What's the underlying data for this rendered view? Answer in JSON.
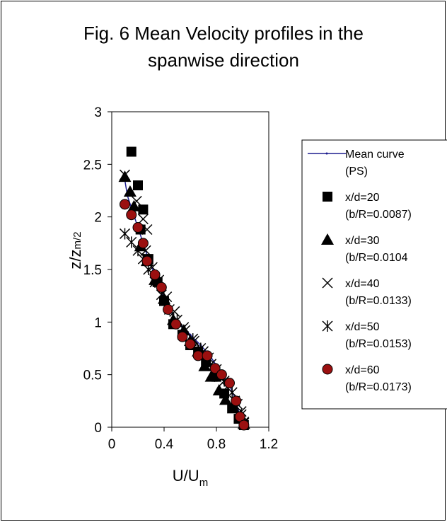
{
  "chart_data": {
    "type": "scatter",
    "title_lines": [
      "Fig. 6 Mean Velocity profiles in the",
      "spanwise direction"
    ],
    "xlabel": {
      "main": "U/U",
      "sub": "m"
    },
    "ylabel": {
      "main": "z/z",
      "sub": "m/2"
    },
    "xlim": [
      0,
      1.2
    ],
    "ylim": [
      0,
      3
    ],
    "xticks": [
      "0",
      "0.4",
      "0.8",
      "1.2"
    ],
    "xtick_values": [
      0,
      0.4,
      0.8,
      1.2
    ],
    "yticks": [
      "0",
      "0.5",
      "1",
      "1.5",
      "2",
      "2.5",
      "3"
    ],
    "ytick_values": [
      0,
      0.5,
      1,
      1.5,
      2,
      2.5,
      3
    ],
    "grid": false,
    "legend_position": "right",
    "series": [
      {
        "name": "Mean curve",
        "name2": "(PS)",
        "marker": "line",
        "color": "#1f1f8f",
        "points": [
          [
            1.0,
            0.0
          ],
          [
            0.98,
            0.1
          ],
          [
            0.95,
            0.25
          ],
          [
            0.9,
            0.4
          ],
          [
            0.82,
            0.55
          ],
          [
            0.75,
            0.68
          ],
          [
            0.68,
            0.78
          ],
          [
            0.6,
            0.88
          ],
          [
            0.52,
            0.98
          ],
          [
            0.45,
            1.1
          ],
          [
            0.4,
            1.22
          ],
          [
            0.36,
            1.35
          ],
          [
            0.32,
            1.48
          ],
          [
            0.28,
            1.6
          ],
          [
            0.24,
            1.75
          ],
          [
            0.2,
            1.9
          ],
          [
            0.16,
            2.05
          ],
          [
            0.12,
            2.2
          ],
          [
            0.1,
            2.35
          ]
        ]
      },
      {
        "name": "x/d=20",
        "name2": "(b/R=0.0087)",
        "marker": "square",
        "color": "#000000",
        "points": [
          [
            0.15,
            2.62
          ],
          [
            0.2,
            2.3
          ],
          [
            0.24,
            2.07
          ],
          [
            0.22,
            1.88
          ],
          [
            0.28,
            1.6
          ],
          [
            0.35,
            1.38
          ],
          [
            0.4,
            1.2
          ],
          [
            0.47,
            0.98
          ],
          [
            0.54,
            0.88
          ],
          [
            0.6,
            0.78
          ],
          [
            0.66,
            0.72
          ],
          [
            0.72,
            0.62
          ],
          [
            0.8,
            0.48
          ],
          [
            0.86,
            0.32
          ],
          [
            0.92,
            0.18
          ],
          [
            0.97,
            0.08
          ],
          [
            1.01,
            0.02
          ]
        ]
      },
      {
        "name": "x/d=30",
        "name2": "(b/R=0.0104",
        "marker": "triangle",
        "color": "#000000",
        "points": [
          [
            0.1,
            2.38
          ],
          [
            0.14,
            2.24
          ],
          [
            0.17,
            2.1
          ],
          [
            0.22,
            1.72
          ],
          [
            0.27,
            1.58
          ],
          [
            0.33,
            1.4
          ],
          [
            0.4,
            1.22
          ],
          [
            0.47,
            1.02
          ],
          [
            0.55,
            0.92
          ],
          [
            0.6,
            0.82
          ],
          [
            0.66,
            0.72
          ],
          [
            0.71,
            0.58
          ],
          [
            0.76,
            0.48
          ],
          [
            0.82,
            0.35
          ],
          [
            0.87,
            0.26
          ],
          [
            0.93,
            0.18
          ],
          [
            0.98,
            0.1
          ],
          [
            1.01,
            0.03
          ]
        ]
      },
      {
        "name": "x/d=40",
        "name2": "(b/R=0.0133)",
        "marker": "cross",
        "color": "#000000",
        "points": [
          [
            0.1,
            2.4
          ],
          [
            0.19,
            2.15
          ],
          [
            0.24,
            1.98
          ],
          [
            0.27,
            1.88
          ],
          [
            0.26,
            1.68
          ],
          [
            0.31,
            1.52
          ],
          [
            0.36,
            1.4
          ],
          [
            0.42,
            1.24
          ],
          [
            0.48,
            1.1
          ],
          [
            0.55,
            0.95
          ],
          [
            0.63,
            0.82
          ],
          [
            0.7,
            0.72
          ],
          [
            0.76,
            0.6
          ],
          [
            0.82,
            0.48
          ],
          [
            0.88,
            0.38
          ],
          [
            0.94,
            0.25
          ],
          [
            0.99,
            0.15
          ],
          [
            1.01,
            0.05
          ]
        ]
      },
      {
        "name": "x/d=50",
        "name2": "(b/R=0.0153)",
        "marker": "asterisk",
        "color": "#000000",
        "points": [
          [
            0.1,
            1.84
          ],
          [
            0.15,
            1.76
          ],
          [
            0.2,
            1.68
          ],
          [
            0.24,
            1.6
          ],
          [
            0.28,
            1.5
          ],
          [
            0.33,
            1.38
          ],
          [
            0.38,
            1.26
          ],
          [
            0.44,
            1.12
          ],
          [
            0.5,
            1.02
          ],
          [
            0.56,
            0.92
          ],
          [
            0.62,
            0.84
          ],
          [
            0.68,
            0.75
          ],
          [
            0.74,
            0.66
          ],
          [
            0.8,
            0.55
          ],
          [
            0.86,
            0.44
          ],
          [
            0.92,
            0.33
          ],
          [
            0.96,
            0.22
          ],
          [
            0.99,
            0.12
          ],
          [
            1.01,
            0.04
          ]
        ]
      },
      {
        "name": "x/d=60",
        "name2": "(b/R=0.0173)",
        "marker": "circle",
        "color": "#9b1010",
        "points": [
          [
            0.1,
            2.12
          ],
          [
            0.15,
            2.02
          ],
          [
            0.2,
            1.9
          ],
          [
            0.24,
            1.75
          ],
          [
            0.27,
            1.58
          ],
          [
            0.33,
            1.45
          ],
          [
            0.38,
            1.33
          ],
          [
            0.43,
            1.12
          ],
          [
            0.49,
            0.98
          ],
          [
            0.54,
            0.86
          ],
          [
            0.6,
            0.79
          ],
          [
            0.66,
            0.68
          ],
          [
            0.73,
            0.68
          ],
          [
            0.79,
            0.56
          ],
          [
            0.84,
            0.5
          ],
          [
            0.9,
            0.42
          ],
          [
            0.95,
            0.25
          ],
          [
            0.98,
            0.1
          ],
          [
            1.01,
            0.02
          ]
        ]
      }
    ]
  }
}
